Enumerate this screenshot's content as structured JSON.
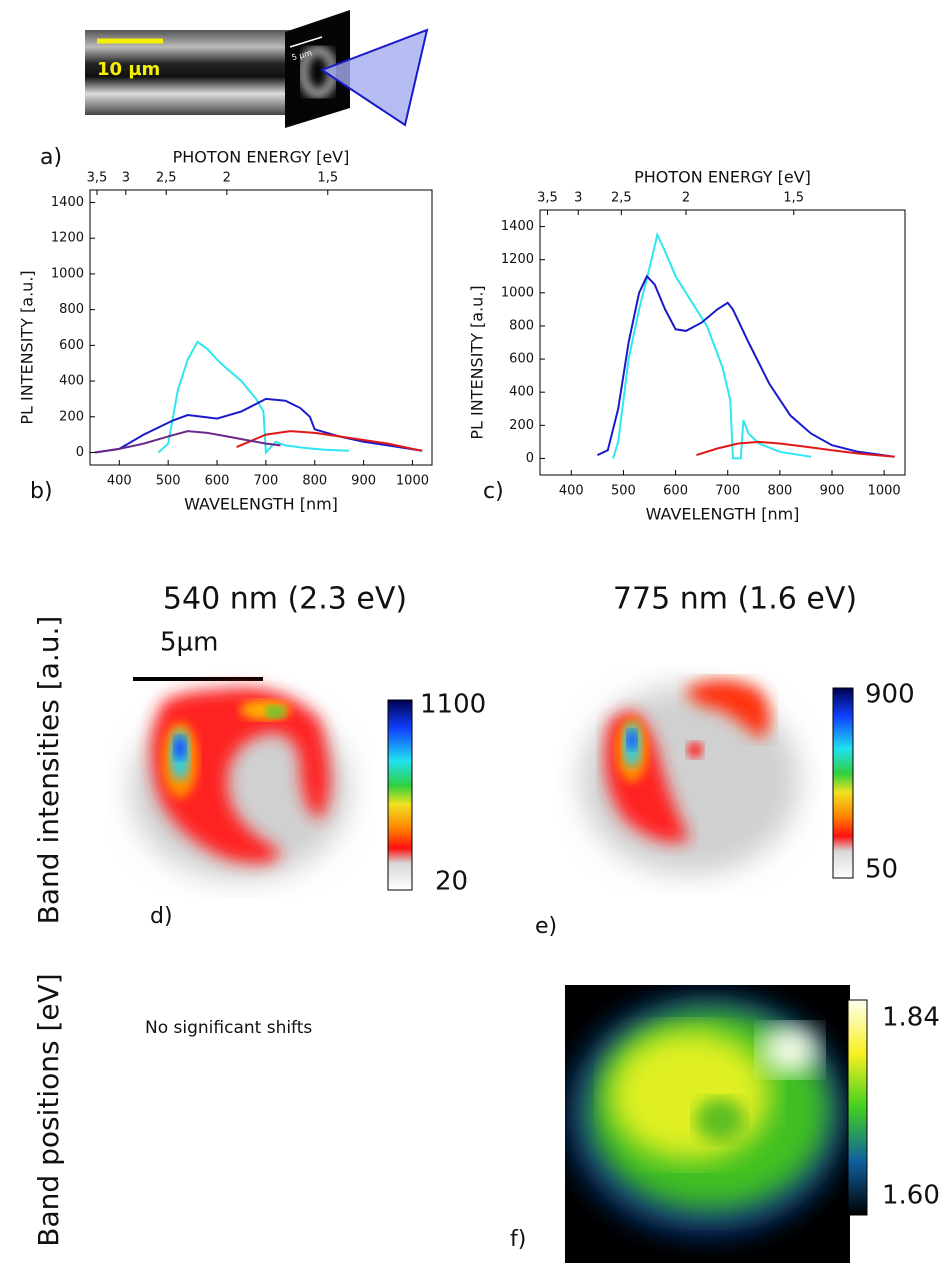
{
  "chart_data": [
    {
      "type": "line",
      "x_label": "WAVELENGTH [nm]",
      "x2_label": "PHOTON ENERGY [eV]",
      "y_label": "PL INTENSITY [a.u.]",
      "xlim": [
        340,
        1040
      ],
      "xticks": [
        400,
        500,
        600,
        700,
        800,
        900,
        1000
      ],
      "ylim": [
        -70,
        1470
      ],
      "yticks": [
        0,
        200,
        400,
        600,
        800,
        1000,
        1200,
        1400
      ],
      "x2ticks": [
        {
          "value": 3.5,
          "label": "3,5"
        },
        3,
        {
          "value": 2.5,
          "label": "2,5"
        },
        2,
        {
          "value": 1.5,
          "label": "1,5"
        }
      ],
      "series": [
        {
          "color": "#2ee6f0",
          "x": [
            480,
            500,
            520,
            540,
            560,
            580,
            600,
            620,
            650,
            680,
            695,
            700,
            720,
            740,
            780,
            820,
            870
          ],
          "values": [
            0,
            50,
            350,
            520,
            620,
            580,
            520,
            470,
            400,
            300,
            230,
            0,
            60,
            40,
            25,
            15,
            10
          ]
        },
        {
          "color": "#1a1acc",
          "x": [
            350,
            400,
            450,
            480,
            510,
            540,
            570,
            600,
            650,
            700,
            740,
            770,
            790,
            800,
            850,
            900,
            950,
            1020
          ],
          "values": [
            0,
            20,
            100,
            140,
            180,
            210,
            200,
            190,
            230,
            300,
            290,
            250,
            200,
            130,
            90,
            60,
            40,
            10
          ]
        },
        {
          "color": "#e01818",
          "x": [
            640,
            700,
            750,
            800,
            850,
            900,
            950,
            1000,
            1020
          ],
          "values": [
            30,
            100,
            120,
            110,
            90,
            70,
            50,
            20,
            10
          ]
        },
        {
          "color": "#6a2a8a",
          "x": [
            350,
            400,
            450,
            500,
            540,
            580,
            620,
            660,
            700,
            730
          ],
          "values": [
            0,
            20,
            50,
            90,
            120,
            110,
            90,
            70,
            50,
            40
          ]
        }
      ]
    },
    {
      "type": "line",
      "x_label": "WAVELENGTH [nm]",
      "x2_label": "PHOTON ENERGY [eV]",
      "y_label": "PL INTENSITY [a.u.]",
      "xlim": [
        340,
        1040
      ],
      "xticks": [
        400,
        500,
        600,
        700,
        800,
        900,
        1000
      ],
      "ylim": [
        -100,
        1500
      ],
      "yticks": [
        0,
        200,
        400,
        600,
        800,
        1000,
        1200,
        1400
      ],
      "x2ticks": [
        {
          "value": 3.5,
          "label": "3,5"
        },
        3,
        {
          "value": 2.5,
          "label": "2,5"
        },
        2,
        {
          "value": 1.5,
          "label": "1,5"
        }
      ],
      "series": [
        {
          "color": "#2ee6f0",
          "x": [
            480,
            490,
            510,
            530,
            550,
            565,
            580,
            600,
            630,
            660,
            690,
            705,
            710,
            725,
            730,
            740,
            760,
            800,
            860
          ],
          "values": [
            0,
            100,
            600,
            900,
            1150,
            1350,
            1250,
            1100,
            950,
            800,
            550,
            350,
            0,
            0,
            230,
            150,
            90,
            40,
            10
          ]
        },
        {
          "color": "#1a1acc",
          "x": [
            450,
            470,
            490,
            510,
            530,
            545,
            560,
            580,
            600,
            620,
            650,
            680,
            700,
            710,
            740,
            780,
            820,
            860,
            900,
            950,
            1020
          ],
          "values": [
            20,
            50,
            300,
            700,
            1000,
            1100,
            1050,
            900,
            780,
            770,
            820,
            900,
            940,
            900,
            700,
            450,
            260,
            150,
            80,
            40,
            10
          ]
        },
        {
          "color": "#e01818",
          "x": [
            640,
            680,
            720,
            760,
            800,
            850,
            900,
            950,
            1020
          ],
          "values": [
            20,
            60,
            90,
            100,
            90,
            70,
            50,
            30,
            10
          ]
        }
      ]
    }
  ],
  "panel_labels": {
    "a": "a)",
    "b": "b)",
    "c": "c)",
    "d": "d)",
    "e": "e)",
    "f": "f)"
  },
  "inset": {
    "scale_bar": "10 µm",
    "small_scale": "5 µm"
  },
  "row_labels": {
    "intensities": "Band intensities [a.u.]",
    "positions": "Band positions [eV]"
  },
  "maps": {
    "d": {
      "title": "540 nm (2.3 eV)",
      "scale_bar": "5µm",
      "cbar_max": "1100",
      "cbar_min": "20"
    },
    "e": {
      "title": "775 nm (1.6 eV)",
      "cbar_max": "900",
      "cbar_min": "50"
    },
    "f": {
      "cbar_max": "1.84",
      "cbar_min": "1.60"
    }
  },
  "note": "No significant shifts"
}
